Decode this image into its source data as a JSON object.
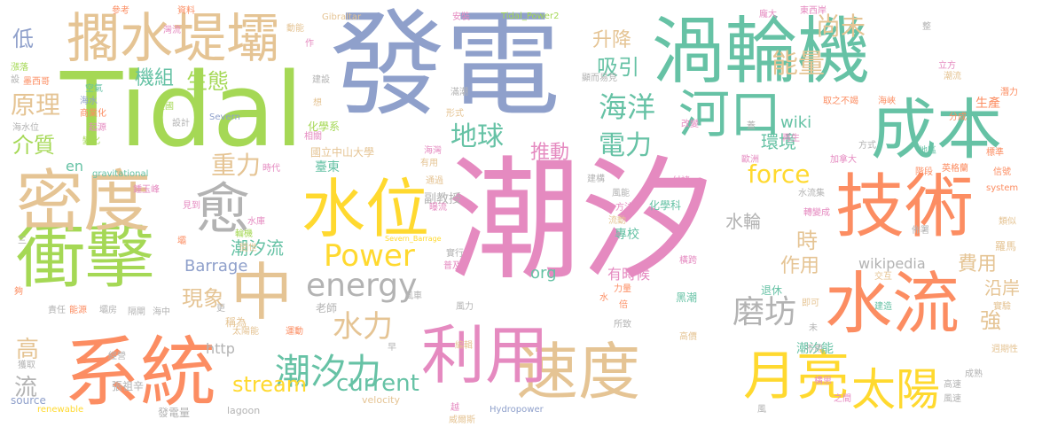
{
  "colors": {
    "pink": "#e58ac0",
    "blue": "#8fa0cb",
    "green": "#a5d855",
    "teal": "#66c2a5",
    "orange": "#fc8d62",
    "tan": "#e5c494",
    "yellow": "#ffd92f",
    "gray": "#b3b3b3"
  },
  "words": {
    "w0": "潮汐",
    "w1": "發電",
    "w2": "Tidal",
    "w3": "渦輪機",
    "w4": "系統",
    "w5": "衝擊",
    "w6": "密度",
    "w7": "技術",
    "w8": "成本",
    "w9": "水位",
    "w10": "速度",
    "w11": "利用",
    "w12": "水流",
    "w13": "擱水堤壩",
    "w14": "中",
    "w15": "月亮",
    "w16": "太陽",
    "w17": "愈",
    "w18": "河口",
    "w19": "潮汐力",
    "w20": "energy",
    "w21": "Power",
    "w22": "能量",
    "w23": "尚未",
    "w24": "海洋",
    "w25": "地球",
    "w26": "電力",
    "w27": "磨坊",
    "w28": "force",
    "w29": "stream",
    "w30": "current",
    "w31": "推動",
    "w32": "重力",
    "w33": "水力",
    "w34": "升降",
    "w35": "吸引",
    "w36": "生態",
    "w37": "機組",
    "w38": "原理",
    "w39": "低",
    "w40": "介質",
    "w41": "高",
    "w42": "流",
    "w43": "現象",
    "w44": "作用",
    "w45": "時",
    "w46": "強",
    "w47": "費用",
    "w48": "沿岸",
    "w49": "環境",
    "w50": "wiki",
    "w51": "wikipedia",
    "w52": "Barrage",
    "w53": "潮汐流",
    "w54": "水輪",
    "w55": "org",
    "w56": "http",
    "w57": "en",
    "w58": "國立中山大學",
    "w59": "化學系",
    "w60": "臺東",
    "w61": "副教授",
    "w62": "老師",
    "w63": "專校",
    "w64": "有時候",
    "w65": "化學科",
    "w66": "黑潮",
    "w67": "退休",
    "w68": "潮汐能",
    "w69": "生產",
    "w70": "Tidal_Power2",
    "w71": "Gibraltar",
    "w72": "Severn",
    "w73": "Severn_Barrage",
    "w74": "Hydropower",
    "w75": "velocity",
    "w76": "lagoon",
    "w77": "renewable",
    "w78": "gravitational",
    "w79": "system",
    "w80": "source",
    "w81": "參考",
    "w82": "資料",
    "w83": "灣流",
    "w84": "動能",
    "w85": "安裝",
    "w86": "龐大",
    "w87": "東西岸",
    "w88": "整",
    "w89": "立方",
    "w90": "潮流",
    "w91": "潛力",
    "w92": "分成",
    "w93": "取之不竭",
    "w94": "海峽",
    "w95": "地區",
    "w96": "標準",
    "w97": "信號",
    "w98": "英格蘭",
    "w99": "羅馬",
    "w100": "類似",
    "w101": "佈署",
    "w102": "轉變成",
    "w103": "加拿大",
    "w104": "歐洲",
    "w105": "再生",
    "w106": "改變",
    "w107": "蓋",
    "w108": "階段",
    "w109": "水流集",
    "w110": "方式",
    "w111": "建構",
    "w112": "風能",
    "w113": "付諸",
    "w114": "方法",
    "w115": "流動",
    "w116": "橫跨",
    "w117": "力量",
    "w118": "倍",
    "w119": "所致",
    "w120": "高價",
    "w121": "不用",
    "w122": "即可",
    "w123": "建造",
    "w124": "交互",
    "w125": "實驗",
    "w126": "週期性",
    "w127": "成熟",
    "w128": "構思",
    "w129": "之間",
    "w130": "高速",
    "w131": "風速",
    "w132": "風",
    "w133": "威爾斯",
    "w134": "越",
    "w135": "編輯",
    "w136": "早",
    "w137": "風力",
    "w138": "風車",
    "w139": "實行",
    "w140": "普及",
    "w141": "曝流",
    "w142": "通過",
    "w143": "有用",
    "w144": "海灣",
    "w145": "形式",
    "w146": "滿潮",
    "w147": "相關",
    "w148": "英國",
    "w149": "起源",
    "w150": "設計",
    "w151": "變化",
    "w152": "商業化",
    "w153": "海水",
    "w154": "空氣",
    "w155": "墨西哥",
    "w156": "漲落",
    "w157": "設",
    "w158": "海水位",
    "w159": "鍾玉峰",
    "w160": "見到",
    "w161": "水庫",
    "w162": "輪機",
    "w163": "間世",
    "w164": "時代",
    "w165": "運動",
    "w166": "太陽能",
    "w167": "稱為",
    "w168": "更",
    "w169": "經營",
    "w170": "責任",
    "w171": "能源",
    "w172": "壩房",
    "w173": "隔閘",
    "w174": "海中",
    "w175": "獲取",
    "w176": "張祖辛",
    "w177": "發電量",
    "w178": "作",
    "w179": "想",
    "w180": "建設",
    "w181": "顯而易見",
    "w182": "夠",
    "w183": "壩",
    "w184": "三",
    "w185": "水",
    "w186": "未"
  }
}
